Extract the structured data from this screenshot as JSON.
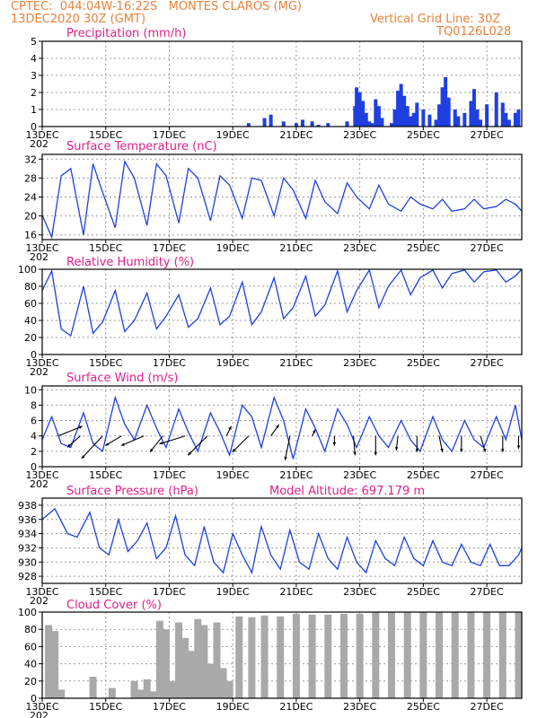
{
  "header": {
    "line1": "CPTEC:  044:04W-16:22S   MONTES CLAROS (MG)",
    "line2": "13DEC2020 30Z (GMT)",
    "grid_note": "Vertical Grid Line: 30Z",
    "code": "TQ0126L028"
  },
  "colors": {
    "header": "#e8823a",
    "title": "#e0208a",
    "line": "#1f3fe0",
    "bars": "#1f3fe0",
    "cloud": "#a9a9a9",
    "grid": "#9a9a9a"
  },
  "x_axis": {
    "start_day": 13,
    "end_day": 28.1,
    "tick_days": [
      13,
      15,
      17,
      19,
      21,
      23,
      25,
      27
    ],
    "tick_labels": [
      "13DEC",
      "15DEC",
      "17DEC",
      "19DEC",
      "21DEC",
      "23DEC",
      "25DEC",
      "27DEC"
    ],
    "year_fragment": "202"
  },
  "chart_data": [
    {
      "type": "bar",
      "title": "Precipitation (mm/h)",
      "ylim": [
        0,
        5
      ],
      "yticks": [
        0,
        1,
        2,
        3,
        4,
        5
      ],
      "grid": true,
      "x_unit": "day of December 2020",
      "x": [
        19.5,
        20.0,
        20.2,
        20.6,
        21.0,
        21.2,
        21.5,
        21.7,
        22.0,
        22.6,
        22.85,
        22.9,
        23.0,
        23.1,
        23.2,
        23.3,
        23.4,
        23.5,
        23.6,
        23.7,
        24.0,
        24.1,
        24.2,
        24.3,
        24.4,
        24.5,
        24.6,
        24.7,
        24.8,
        25.0,
        25.2,
        25.4,
        25.5,
        25.6,
        25.7,
        25.8,
        26.0,
        26.1,
        26.3,
        26.5,
        26.6,
        26.7,
        26.8,
        27.0,
        27.3,
        27.5,
        27.6,
        27.7,
        27.9,
        28.0
      ],
      "values": [
        0.2,
        0.5,
        0.7,
        0.3,
        0.2,
        0.4,
        0.3,
        0.1,
        0.2,
        0.3,
        1.2,
        2.3,
        2.0,
        1.5,
        0.8,
        0.3,
        0.2,
        1.6,
        1.2,
        0.5,
        0.2,
        1.0,
        2.1,
        2.5,
        1.8,
        1.2,
        0.6,
        0.8,
        1.4,
        1.0,
        0.7,
        0.4,
        1.3,
        2.3,
        2.9,
        1.7,
        1.0,
        0.6,
        0.8,
        1.5,
        2.2,
        1.0,
        0.4,
        1.3,
        2.0,
        1.4,
        0.8,
        0.4,
        0.8,
        1.0
      ]
    },
    {
      "type": "line",
      "title": "Surface Temperature (nC)",
      "ylim": [
        15,
        33
      ],
      "yticks": [
        16,
        20,
        24,
        28,
        32
      ],
      "grid": true,
      "x": [
        13.0,
        13.3,
        13.6,
        13.9,
        14.3,
        14.6,
        14.9,
        15.3,
        15.6,
        15.9,
        16.3,
        16.6,
        16.9,
        17.3,
        17.6,
        17.9,
        18.3,
        18.6,
        18.9,
        19.3,
        19.6,
        19.9,
        20.3,
        20.6,
        20.9,
        21.3,
        21.6,
        21.9,
        22.3,
        22.6,
        22.9,
        23.3,
        23.6,
        23.9,
        24.3,
        24.6,
        24.9,
        25.3,
        25.6,
        25.9,
        26.3,
        26.6,
        26.9,
        27.3,
        27.6,
        27.9,
        28.1
      ],
      "values": [
        20.2,
        15.5,
        28.5,
        30.0,
        16.0,
        31.0,
        25.0,
        17.5,
        31.5,
        28.0,
        18.0,
        31.0,
        28.5,
        18.5,
        30.0,
        28.0,
        19.0,
        28.5,
        26.5,
        19.5,
        28.0,
        27.5,
        20.0,
        28.0,
        25.5,
        19.5,
        27.5,
        23.0,
        20.5,
        27.0,
        24.0,
        21.5,
        26.5,
        22.5,
        21.0,
        24.0,
        22.5,
        21.5,
        23.5,
        21.0,
        21.5,
        23.5,
        21.5,
        22.0,
        23.5,
        22.5,
        21.0
      ]
    },
    {
      "type": "line",
      "title": "Relative Humidity (%)",
      "ylim": [
        0,
        100
      ],
      "yticks": [
        0,
        20,
        40,
        60,
        80,
        100
      ],
      "grid": true,
      "x": [
        13.0,
        13.3,
        13.6,
        13.9,
        14.3,
        14.6,
        14.9,
        15.3,
        15.6,
        15.9,
        16.3,
        16.6,
        16.9,
        17.3,
        17.6,
        17.9,
        18.3,
        18.6,
        18.9,
        19.3,
        19.6,
        19.9,
        20.3,
        20.6,
        20.9,
        21.3,
        21.6,
        21.9,
        22.3,
        22.6,
        22.9,
        23.3,
        23.6,
        23.9,
        24.3,
        24.6,
        24.9,
        25.3,
        25.6,
        25.9,
        26.3,
        26.6,
        26.9,
        27.3,
        27.6,
        27.9,
        28.1
      ],
      "values": [
        75,
        98,
        30,
        22,
        80,
        25,
        38,
        75,
        27,
        40,
        72,
        30,
        45,
        70,
        32,
        42,
        78,
        35,
        45,
        85,
        35,
        50,
        90,
        42,
        55,
        92,
        45,
        58,
        98,
        50,
        75,
        99,
        55,
        80,
        99,
        70,
        90,
        99,
        78,
        95,
        99,
        85,
        97,
        99,
        85,
        92,
        100
      ]
    },
    {
      "type": "line",
      "title": "Surface Wind (m/s)",
      "ylim": [
        0,
        10.5
      ],
      "yticks": [
        0,
        2,
        4,
        6,
        8,
        10
      ],
      "grid": true,
      "x": [
        13.0,
        13.3,
        13.6,
        13.9,
        14.3,
        14.6,
        14.9,
        15.3,
        15.6,
        15.9,
        16.3,
        16.6,
        16.9,
        17.3,
        17.6,
        17.9,
        18.3,
        18.6,
        18.9,
        19.3,
        19.6,
        19.9,
        20.3,
        20.6,
        20.9,
        21.3,
        21.6,
        21.9,
        22.3,
        22.6,
        22.9,
        23.3,
        23.6,
        23.9,
        24.3,
        24.6,
        24.9,
        25.3,
        25.6,
        25.9,
        26.3,
        26.6,
        26.9,
        27.3,
        27.6,
        27.9,
        28.1
      ],
      "values": [
        3.5,
        6.5,
        3.0,
        2.5,
        7.0,
        3.0,
        2.0,
        9.0,
        5.5,
        3.5,
        8.0,
        5.0,
        2.5,
        7.5,
        4.5,
        2.0,
        7.0,
        4.5,
        1.5,
        8.0,
        6.5,
        2.5,
        9.0,
        6.0,
        1.0,
        7.5,
        5.0,
        2.0,
        7.5,
        5.5,
        2.5,
        6.5,
        4.0,
        2.5,
        6.0,
        3.5,
        2.0,
        6.5,
        3.5,
        2.0,
        6.0,
        3.5,
        2.5,
        6.5,
        3.5,
        8.0,
        3.5
      ],
      "arrows": {
        "x": [
          13.5,
          14.2,
          14.9,
          15.5,
          16.2,
          16.8,
          17.5,
          18.2,
          18.8,
          19.5,
          20.2,
          20.8,
          21.5,
          22.2,
          22.8,
          23.5,
          24.2,
          24.8,
          25.5,
          26.2,
          26.8,
          27.5,
          28.0
        ],
        "u": [
          1.5,
          -0.8,
          -1.3,
          -1.0,
          -1.4,
          -0.8,
          -1.6,
          -1.2,
          0.3,
          -1.0,
          0.5,
          -0.3,
          0.2,
          0.0,
          0.1,
          0.0,
          -0.1,
          0.0,
          0.2,
          0.0,
          0.3,
          0.0,
          0.0
        ],
        "v": [
          0.6,
          -0.7,
          -1.4,
          -0.6,
          -0.6,
          -1.0,
          -0.5,
          -1.2,
          0.6,
          -1.0,
          0.7,
          -1.5,
          0.4,
          -0.6,
          -1.2,
          -1.2,
          -0.9,
          -1.0,
          -1.0,
          -1.0,
          -1.0,
          -1.0,
          -0.8
        ]
      }
    },
    {
      "type": "line",
      "title": "Surface Pressure (hPa)",
      "note": "Model Altitude: 697.179 m",
      "ylim": [
        927,
        939
      ],
      "yticks": [
        928,
        930,
        932,
        934,
        936,
        938
      ],
      "grid": true,
      "x": [
        13.0,
        13.4,
        13.8,
        14.1,
        14.5,
        14.8,
        15.1,
        15.4,
        15.7,
        16.0,
        16.3,
        16.6,
        16.9,
        17.2,
        17.5,
        17.8,
        18.1,
        18.4,
        18.7,
        19.0,
        19.3,
        19.6,
        19.9,
        20.2,
        20.5,
        20.8,
        21.1,
        21.4,
        21.7,
        22.0,
        22.3,
        22.6,
        22.9,
        23.2,
        23.5,
        23.8,
        24.1,
        24.4,
        24.7,
        25.0,
        25.3,
        25.6,
        25.9,
        26.2,
        26.5,
        26.8,
        27.1,
        27.4,
        27.7,
        28.0,
        28.1
      ],
      "values": [
        936.0,
        937.5,
        934.0,
        933.5,
        937.0,
        932.0,
        931.0,
        936.0,
        931.5,
        933.0,
        935.5,
        930.5,
        932.0,
        936.5,
        931.0,
        929.5,
        935.0,
        930.0,
        928.5,
        934.0,
        931.0,
        928.5,
        935.0,
        931.0,
        929.0,
        934.5,
        930.0,
        929.0,
        934.0,
        930.5,
        929.0,
        933.5,
        930.0,
        928.5,
        933.0,
        930.5,
        929.5,
        933.5,
        930.5,
        929.5,
        933.0,
        930.0,
        929.5,
        932.5,
        930.0,
        929.5,
        932.5,
        929.5,
        929.5,
        931.0,
        932.0
      ]
    },
    {
      "type": "bar",
      "title": "Cloud Cover (%)",
      "ylim": [
        0,
        100
      ],
      "yticks": [
        0,
        20,
        40,
        60,
        80,
        100
      ],
      "grid": true,
      "x": [
        13.2,
        13.4,
        13.6,
        14.0,
        14.4,
        14.6,
        14.8,
        15.2,
        15.4,
        15.7,
        15.9,
        16.1,
        16.3,
        16.5,
        16.7,
        16.9,
        17.1,
        17.3,
        17.5,
        17.7,
        17.9,
        18.1,
        18.3,
        18.5,
        18.7,
        18.9,
        19.2,
        19.6,
        20.0,
        20.5,
        21.0,
        21.5,
        22.0,
        22.5,
        23.0,
        23.5,
        24.0,
        24.5,
        25.0,
        25.5,
        26.0,
        26.5,
        27.0,
        27.5,
        28.0
      ],
      "values": [
        85,
        78,
        10,
        0,
        0,
        25,
        0,
        12,
        0,
        0,
        20,
        10,
        22,
        8,
        90,
        80,
        20,
        88,
        70,
        55,
        92,
        85,
        40,
        88,
        35,
        20,
        95,
        94,
        96,
        95,
        98,
        97,
        97,
        98,
        98,
        100,
        100,
        100,
        100,
        100,
        100,
        100,
        100,
        100,
        100
      ]
    }
  ]
}
